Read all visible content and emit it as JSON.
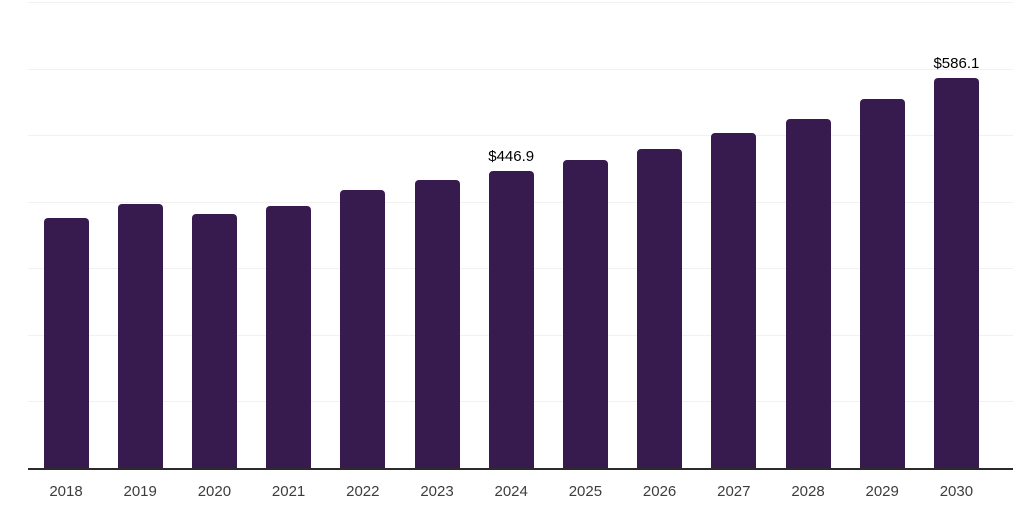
{
  "chart_data": {
    "type": "bar",
    "title": "",
    "xlabel": "",
    "ylabel": "",
    "categories": [
      "2018",
      "2019",
      "2020",
      "2021",
      "2022",
      "2023",
      "2024",
      "2025",
      "2026",
      "2027",
      "2028",
      "2029",
      "2030"
    ],
    "values": [
      375,
      397,
      382,
      393,
      418,
      432,
      446.9,
      462,
      479,
      503,
      525,
      554,
      586.1
    ],
    "data_labels": {
      "2024": "$446.9",
      "2030": "$586.1"
    },
    "ylim": [
      0,
      700
    ],
    "grid_step": 100,
    "grid": true,
    "legend": false,
    "bar_color": "#371a4e",
    "gridline_color": "#f1f1f2",
    "axis_line_color": "#2b2b2b",
    "tick_label_color": "#3d3d3d",
    "data_label_color": "#000000"
  }
}
